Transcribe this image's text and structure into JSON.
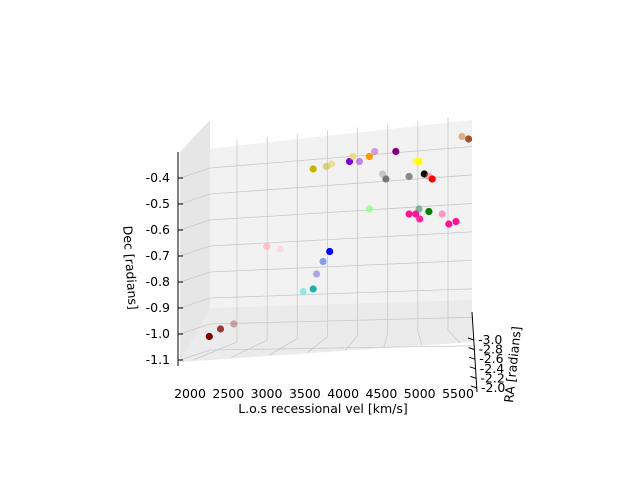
{
  "chart_data": {
    "type": "scatter3d",
    "title": "",
    "xlabel": "L.o.s recessional vel [km/s]",
    "ylabel": "RA [radians]",
    "zlabel": "Dec [radians]",
    "xticks": [
      "2000",
      "2500",
      "3000",
      "3500",
      "4000",
      "4500",
      "5000",
      "5500"
    ],
    "yticks": [
      "-3.0",
      "-2.8",
      "-2.6",
      "-2.4",
      "-2.2",
      "-2.0"
    ],
    "zticks": [
      "-0.4",
      "-0.5",
      "-0.6",
      "-0.7",
      "-0.8",
      "-0.9",
      "-1.0",
      "-1.1"
    ],
    "xlim": [
      1800,
      5700
    ],
    "zlim": [
      -1.12,
      -0.32
    ],
    "grid": true,
    "colors": {
      "pane": "#f2f2f2",
      "grid": "#c8c8c8"
    },
    "points": [
      {
        "x": 1880,
        "z": -1.09,
        "color": "#7b0000",
        "alpha": 1.0
      },
      {
        "x": 2050,
        "z": -1.06,
        "color": "#8b1a1a",
        "alpha": 0.85
      },
      {
        "x": 2250,
        "z": -1.04,
        "color": "#b07070",
        "alpha": 0.6
      },
      {
        "x": 2750,
        "z": -0.73,
        "color": "#ffb6c1",
        "alpha": 0.85
      },
      {
        "x": 2950,
        "z": -0.74,
        "color": "#ffc0cb",
        "alpha": 0.45
      },
      {
        "x": 3300,
        "z": -0.91,
        "color": "#40e0d0",
        "alpha": 0.5
      },
      {
        "x": 3450,
        "z": -0.9,
        "color": "#20b2aa",
        "alpha": 1.0
      },
      {
        "x": 3500,
        "z": -0.84,
        "color": "#6a5acd",
        "alpha": 0.5
      },
      {
        "x": 3600,
        "z": -0.79,
        "color": "#4169e1",
        "alpha": 0.6
      },
      {
        "x": 3700,
        "z": -0.75,
        "color": "#0000ff",
        "alpha": 1.0
      },
      {
        "x": 3450,
        "z": -0.42,
        "color": "#c8b400",
        "alpha": 1.0
      },
      {
        "x": 3650,
        "z": -0.41,
        "color": "#cfc24a",
        "alpha": 0.7
      },
      {
        "x": 3730,
        "z": -0.4,
        "color": "#ddd060",
        "alpha": 0.55
      },
      {
        "x": 4000,
        "z": -0.39,
        "color": "#7b00d4",
        "alpha": 1.0
      },
      {
        "x": 4150,
        "z": -0.39,
        "color": "#9932cc",
        "alpha": 0.55
      },
      {
        "x": 4050,
        "z": -0.37,
        "color": "#f0d060",
        "alpha": 0.7
      },
      {
        "x": 4300,
        "z": -0.37,
        "color": "#ff9900",
        "alpha": 1.0
      },
      {
        "x": 4380,
        "z": -0.35,
        "color": "#ba55d3",
        "alpha": 0.55
      },
      {
        "x": 4700,
        "z": -0.35,
        "color": "#800080",
        "alpha": 1.0
      },
      {
        "x": 4500,
        "z": -0.44,
        "color": "#aaaaaa",
        "alpha": 0.6
      },
      {
        "x": 4550,
        "z": -0.46,
        "color": "#777777",
        "alpha": 1.0
      },
      {
        "x": 4900,
        "z": -0.45,
        "color": "#888888",
        "alpha": 1.0
      },
      {
        "x": 5000,
        "z": -0.39,
        "color": "#ffff00",
        "alpha": 0.55
      },
      {
        "x": 5050,
        "z": -0.39,
        "color": "#ffff00",
        "alpha": 1.0
      },
      {
        "x": 5130,
        "z": -0.44,
        "color": "#000000",
        "alpha": 1.0
      },
      {
        "x": 5200,
        "z": -0.45,
        "color": "#ff6666",
        "alpha": 0.5
      },
      {
        "x": 5250,
        "z": -0.46,
        "color": "#ff0000",
        "alpha": 1.0
      },
      {
        "x": 4300,
        "z": -0.58,
        "color": "#98fb98",
        "alpha": 0.9
      },
      {
        "x": 4900,
        "z": -0.6,
        "color": "#ff1493",
        "alpha": 1.0
      },
      {
        "x": 5000,
        "z": -0.6,
        "color": "#ff1493",
        "alpha": 1.0
      },
      {
        "x": 5060,
        "z": -0.62,
        "color": "#ff1493",
        "alpha": 0.9
      },
      {
        "x": 5050,
        "z": -0.58,
        "color": "#2e8b57",
        "alpha": 0.55
      },
      {
        "x": 5200,
        "z": -0.59,
        "color": "#008000",
        "alpha": 1.0
      },
      {
        "x": 5400,
        "z": -0.6,
        "color": "#ff69b4",
        "alpha": 0.65
      },
      {
        "x": 5500,
        "z": -0.64,
        "color": "#ff1493",
        "alpha": 1.0
      },
      {
        "x": 5610,
        "z": -0.63,
        "color": "#ff1493",
        "alpha": 1.0
      },
      {
        "x": 5700,
        "z": -0.29,
        "color": "#cd853f",
        "alpha": 0.6
      },
      {
        "x": 5800,
        "z": -0.3,
        "color": "#a0522d",
        "alpha": 1.0
      }
    ]
  }
}
